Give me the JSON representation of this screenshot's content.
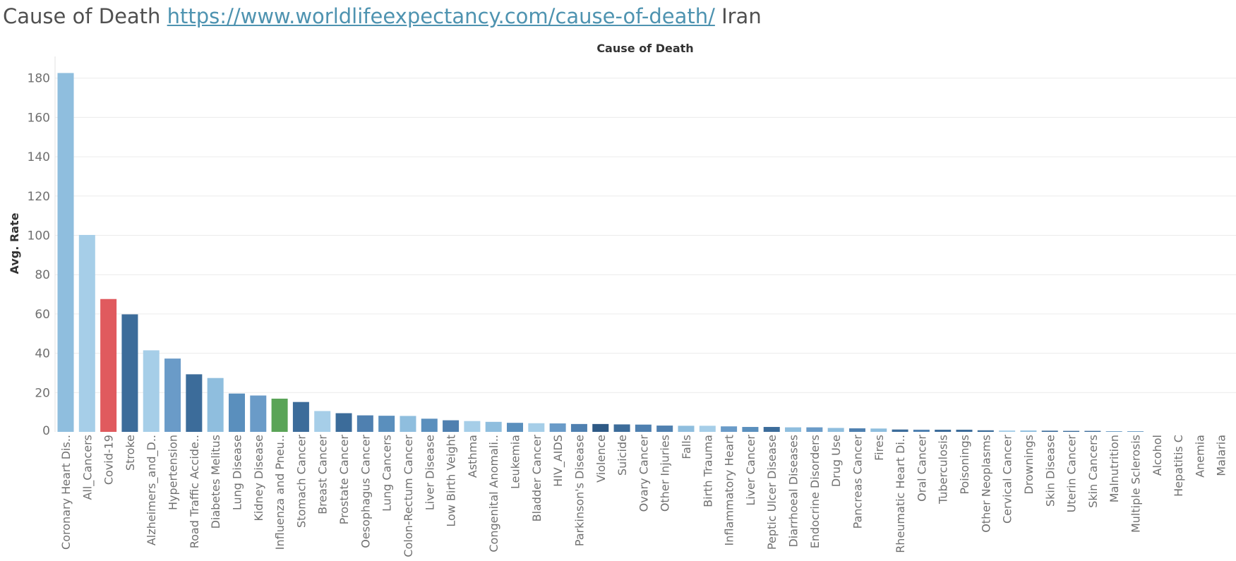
{
  "header": {
    "title_prefix": "Cause of Death ",
    "title_link": "https://www.worldlifeexpectancy.com/cause-of-death/",
    "title_suffix": " Iran"
  },
  "colors": {
    "light": "#a6cee8",
    "mid_light": "#8fbede",
    "mid": "#6a9bc8",
    "dark": "#3c6c9a",
    "darker": "#2e5985",
    "red": "#e05a5e",
    "green": "#5aa457",
    "grid": "#ececec",
    "tick_text": "#707070"
  },
  "chart_data": {
    "type": "bar",
    "title": "Cause of Death",
    "xlabel": "",
    "ylabel": "Avg. Rate",
    "ylim": [
      0,
      184
    ],
    "yticks": [
      0,
      20,
      40,
      60,
      80,
      100,
      120,
      140,
      160,
      180
    ],
    "grid": true,
    "categories": [
      "Coronary Heart Dis..",
      "All_Cancers",
      "Covid-19",
      "Stroke",
      "Alzheimers_and_D..",
      "Hypertension",
      "Road Traffic Accide..",
      "Diabetes Melitus",
      "Lung Disease",
      "Kidney Disease",
      "Influenza and Pneu..",
      "Stomach Cancer",
      "Breast Cancer",
      "Prostate Cancer",
      "Oesophagus Cancer",
      "Lung Cancers",
      "Colon-Rectum Cancer",
      "Liver Disease",
      "Low Birth Veight",
      "Asthma",
      "Congenital Anomali..",
      "Leukemia",
      "Bladder Cancer",
      "HIV_AIDS",
      "Parkinson's Disease",
      "Violence",
      "Suicide",
      "Ovary Cancer",
      "Other Injuries",
      "Falls",
      "Birth Trauma",
      "Inflammatory Heart",
      "Liver Cancer",
      "Peptic Ulcer Disease",
      "Diarrhoeal Diseases",
      "Endocrine Disorders",
      "Drug Use",
      "Pancreas Cancer",
      "Fires",
      "Rheumatic Heart Di..",
      "Oral Cancer",
      "Tuberculosis",
      "Poisonings",
      "Other Neoplasms",
      "Cervical Cancer",
      "Drownings",
      "Skin Disease",
      "Uterin Cancer",
      "Skin Cancers",
      "Malnutrition",
      "Multiple Sclerosis",
      "Alcohol",
      "Hepatitis C",
      "Anemia",
      "Malaria"
    ],
    "values": [
      182.6,
      100.2,
      67.6,
      59.8,
      41.5,
      37.3,
      29.3,
      27.4,
      19.5,
      18.5,
      16.9,
      15.2,
      10.6,
      9.5,
      8.4,
      8.2,
      8.1,
      6.7,
      5.9,
      5.5,
      5.1,
      4.6,
      4.4,
      4.3,
      4.0,
      4.0,
      3.8,
      3.7,
      3.2,
      3.1,
      3.1,
      2.8,
      2.5,
      2.5,
      2.3,
      2.3,
      2.0,
      1.8,
      1.7,
      1.2,
      1.1,
      1.1,
      1.1,
      0.8,
      0.7,
      0.7,
      0.6,
      0.5,
      0.5,
      0.3,
      0.3,
      0.0,
      0.0,
      0.0,
      0.0
    ],
    "bar_colors": [
      "#8fbede",
      "#a6cee8",
      "#e05a5e",
      "#3c6c9a",
      "#a6cee8",
      "#6a9bc8",
      "#3c6c9a",
      "#8fbede",
      "#5a8fbd",
      "#6a9bc8",
      "#5aa457",
      "#3c6c9a",
      "#a6cee8",
      "#3c6c9a",
      "#4f80b0",
      "#5a8fbd",
      "#8fbede",
      "#5a8fbd",
      "#4f80b0",
      "#a6cee8",
      "#8fbede",
      "#5a8fbd",
      "#a6cee8",
      "#6a9bc8",
      "#4f80b0",
      "#2e5985",
      "#3c6c9a",
      "#4f80b0",
      "#4f80b0",
      "#8fbede",
      "#a6cee8",
      "#6a9bc8",
      "#5a8fbd",
      "#3c6c9a",
      "#8fbede",
      "#6a9bc8",
      "#8fbede",
      "#4f80b0",
      "#8fbede",
      "#3c6c9a",
      "#4f80b0",
      "#3c6c9a",
      "#3c6c9a",
      "#3c6c9a",
      "#a6cee8",
      "#8fbede",
      "#3c6c9a",
      "#3c6c9a",
      "#3c6c9a",
      "#5a8fbd",
      "#5a8fbd",
      "#8fbede",
      "#8fbede",
      "#8fbede",
      "#8fbede"
    ]
  }
}
